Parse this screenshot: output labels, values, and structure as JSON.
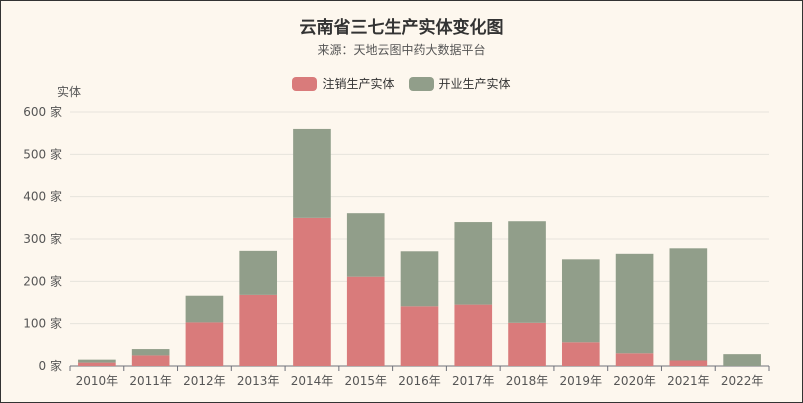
{
  "chart_data": {
    "type": "bar",
    "stacked": true,
    "title": "云南省三七生产实体变化图",
    "subtitle": "来源：天地云图中药大数据平台",
    "ylabel": "实体",
    "y_unit": " 家",
    "ylim": [
      0,
      600
    ],
    "yticks": [
      0,
      100,
      200,
      300,
      400,
      500,
      600
    ],
    "grid": true,
    "legend_position": "top-center",
    "categories": [
      "2010年",
      "2011年",
      "2012年",
      "2013年",
      "2014年",
      "2015年",
      "2016年",
      "2017年",
      "2018年",
      "2019年",
      "2020年",
      "2021年",
      "2022年"
    ],
    "series": [
      {
        "name": "注销生产实体",
        "color": "#d97b7b",
        "values": [
          8,
          25,
          103,
          168,
          350,
          211,
          141,
          145,
          102,
          56,
          30,
          13,
          0
        ]
      },
      {
        "name": "开业生产实体",
        "color": "#919e8a",
        "values": [
          7,
          15,
          63,
          104,
          210,
          150,
          130,
          195,
          240,
          196,
          235,
          265,
          28
        ]
      }
    ]
  }
}
